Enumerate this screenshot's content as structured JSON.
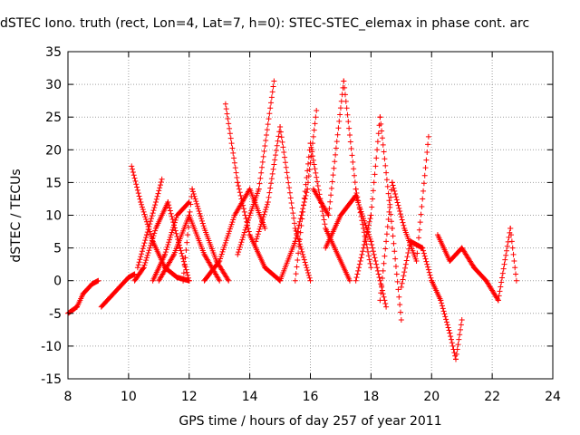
{
  "chart_data": {
    "type": "scatter",
    "title": "dSTEC Iono. truth (rect, Lon=4, Lat=7, h=0): STEC-STEC_elemax in phase cont. arc",
    "xlabel": "GPS time / hours of day 257 of year 2011",
    "ylabel": "dSTEC  / TECUs",
    "xlim": [
      8,
      24
    ],
    "ylim": [
      -15,
      35
    ],
    "x_ticks": [
      8,
      10,
      12,
      14,
      16,
      18,
      20,
      22,
      24
    ],
    "y_ticks": [
      -15,
      -10,
      -5,
      0,
      5,
      10,
      15,
      20,
      25,
      30,
      35
    ],
    "grid": true,
    "marker": "+",
    "color": "#ff0000",
    "series": [
      {
        "x": [
          8.0,
          8.3,
          8.5,
          8.8,
          9.0
        ],
        "y": [
          -5,
          -4,
          -2,
          -0.5,
          0
        ]
      },
      {
        "x": [
          9.1,
          9.4,
          9.7,
          10.0,
          10.2
        ],
        "y": [
          -4,
          -2.5,
          -1,
          0.5,
          1
        ]
      },
      {
        "x": [
          10.1,
          10.4,
          10.8,
          11.2,
          11.6,
          12.0
        ],
        "y": [
          17.5,
          12,
          6,
          2,
          0.5,
          0
        ]
      },
      {
        "x": [
          10.2,
          10.5,
          10.9,
          11.3,
          11.7,
          12.0
        ],
        "y": [
          0,
          2,
          8,
          12,
          5,
          0
        ]
      },
      {
        "x": [
          10.3,
          10.6,
          10.9,
          11.1
        ],
        "y": [
          2,
          7,
          12,
          15.5
        ]
      },
      {
        "x": [
          10.8,
          11.2,
          11.6,
          12.0
        ],
        "y": [
          0,
          4,
          10,
          12
        ]
      },
      {
        "x": [
          11.0,
          11.5,
          12.0,
          12.5,
          13.0
        ],
        "y": [
          0,
          4,
          10,
          4,
          0
        ]
      },
      {
        "x": [
          11.8,
          12.1,
          12.5,
          12.9,
          13.3
        ],
        "y": [
          0,
          14,
          8,
          3,
          0
        ]
      },
      {
        "x": [
          12.5,
          13.0,
          13.5,
          14.0,
          14.5
        ],
        "y": [
          0,
          3,
          10,
          14,
          8
        ]
      },
      {
        "x": [
          13.2,
          13.6,
          14.0,
          14.5,
          15.0
        ],
        "y": [
          27,
          15,
          7,
          2,
          0
        ]
      },
      {
        "x": [
          13.6,
          14.0,
          14.3,
          14.8
        ],
        "y": [
          4,
          10,
          14,
          30.5
        ]
      },
      {
        "x": [
          14.2,
          14.6,
          15.0,
          15.5,
          16.0
        ],
        "y": [
          6,
          12,
          23.5,
          8,
          0
        ]
      },
      {
        "x": [
          15.0,
          15.5,
          15.9,
          16.2
        ],
        "y": [
          0,
          6,
          14,
          26
        ]
      },
      {
        "x": [
          15.5,
          16.0,
          16.5,
          17.0,
          17.3
        ],
        "y": [
          0,
          21,
          8,
          3,
          0
        ]
      },
      {
        "x": [
          16.1,
          16.6,
          17.1,
          17.5,
          18.0
        ],
        "y": [
          14,
          10,
          30.5,
          14,
          2
        ]
      },
      {
        "x": [
          16.5,
          17.0,
          17.5,
          18.0,
          18.5
        ],
        "y": [
          5,
          10,
          13,
          6,
          -4
        ]
      },
      {
        "x": [
          17.5,
          18.0,
          18.3,
          18.7,
          19.0
        ],
        "y": [
          0,
          10,
          25,
          8,
          -6
        ]
      },
      {
        "x": [
          18.3,
          18.7,
          19.1,
          19.5,
          19.9
        ],
        "y": [
          -3,
          15,
          8,
          3,
          22
        ]
      },
      {
        "x": [
          19.0,
          19.3,
          19.7,
          20.0,
          20.3,
          20.6,
          20.8,
          21.0
        ],
        "y": [
          -1,
          6,
          5,
          0,
          -3,
          -8,
          -12,
          -6
        ]
      },
      {
        "x": [
          20.2,
          20.6,
          21.0,
          21.4,
          21.8,
          22.2,
          22.6,
          22.8
        ],
        "y": [
          7,
          3,
          5,
          2,
          0,
          -3,
          8,
          0
        ]
      }
    ]
  }
}
